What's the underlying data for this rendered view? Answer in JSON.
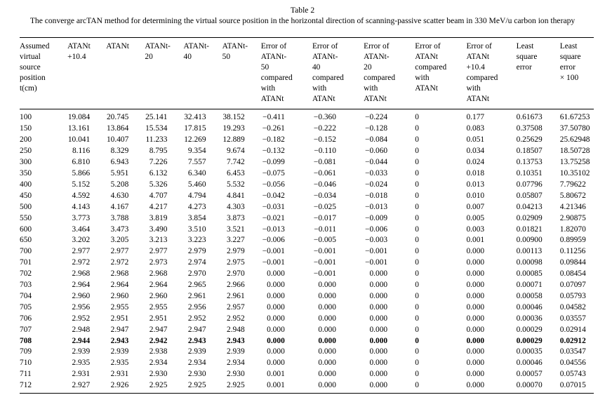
{
  "title": "Table 2",
  "caption": "The converge arcTAN method for determining the virtual source position in the horizontal direction of scanning-passive scatter beam in 330 MeV/u carbon ion therapy",
  "table": {
    "bold_row": "708",
    "columns": [
      {
        "lines": [
          "Assumed",
          "virtual",
          "source",
          "position",
          "t(cm)"
        ]
      },
      {
        "lines": [
          "ATANt",
          "+10.4"
        ]
      },
      {
        "lines": [
          "ATANt"
        ]
      },
      {
        "lines": [
          "ATANt-",
          "20"
        ]
      },
      {
        "lines": [
          "ATANt-",
          "40"
        ]
      },
      {
        "lines": [
          "ATANt-",
          "50"
        ]
      },
      {
        "lines": [
          "Error of",
          "ATANt-",
          "50",
          "compared",
          "with",
          "ATANt"
        ]
      },
      {
        "lines": [
          "Error of",
          "ATANt-",
          "40",
          "compared",
          "with",
          "ATANt"
        ]
      },
      {
        "lines": [
          "Error of",
          "ATANt-",
          "20",
          "compared",
          "with",
          "ATANt"
        ]
      },
      {
        "lines": [
          "Error of",
          "ATANt",
          "compared",
          "with",
          "ATANt"
        ]
      },
      {
        "lines": [
          "Error of",
          "ATANt",
          "+10.4",
          "compared",
          "with",
          "ATANt"
        ]
      },
      {
        "lines": [
          "Least",
          "square",
          "error"
        ]
      },
      {
        "lines": [
          "Least",
          "square",
          "error",
          "× 100"
        ]
      }
    ],
    "rows": [
      [
        "100",
        "19.084",
        "20.745",
        "25.141",
        "32.413",
        "38.152",
        "−0.411",
        "−0.360",
        "−0.224",
        "0",
        "0.177",
        "0.61673",
        "61.67253"
      ],
      [
        "150",
        "13.161",
        "13.864",
        "15.534",
        "17.815",
        "19.293",
        "−0.261",
        "−0.222",
        "−0.128",
        "0",
        "0.083",
        "0.37508",
        "37.50780"
      ],
      [
        "200",
        "10.041",
        "10.407",
        "11.233",
        "12.269",
        "12.889",
        "−0.182",
        "−0.152",
        "−0.084",
        "0",
        "0.051",
        "0.25629",
        "25.62948"
      ],
      [
        "250",
        "8.116",
        "8.329",
        "8.795",
        "9.354",
        "9.674",
        "−0.132",
        "−0.110",
        "−0.060",
        "0",
        "0.034",
        "0.18507",
        "18.50728"
      ],
      [
        "300",
        "6.810",
        "6.943",
        "7.226",
        "7.557",
        "7.742",
        "−0.099",
        "−0.081",
        "−0.044",
        "0",
        "0.024",
        "0.13753",
        "13.75258"
      ],
      [
        "350",
        "5.866",
        "5.951",
        "6.132",
        "6.340",
        "6.453",
        "−0.075",
        "−0.061",
        "−0.033",
        "0",
        "0.018",
        "0.10351",
        "10.35102"
      ],
      [
        "400",
        "5.152",
        "5.208",
        "5.326",
        "5.460",
        "5.532",
        "−0.056",
        "−0.046",
        "−0.024",
        "0",
        "0.013",
        "0.07796",
        "7.79622"
      ],
      [
        "450",
        "4.592",
        "4.630",
        "4.707",
        "4.794",
        "4.841",
        "−0.042",
        "−0.034",
        "−0.018",
        "0",
        "0.010",
        "0.05807",
        "5.80672"
      ],
      [
        "500",
        "4.143",
        "4.167",
        "4.217",
        "4.273",
        "4.303",
        "−0.031",
        "−0.025",
        "−0.013",
        "0",
        "0.007",
        "0.04213",
        "4.21346"
      ],
      [
        "550",
        "3.773",
        "3.788",
        "3.819",
        "3.854",
        "3.873",
        "−0.021",
        "−0.017",
        "−0.009",
        "0",
        "0.005",
        "0.02909",
        "2.90875"
      ],
      [
        "600",
        "3.464",
        "3.473",
        "3.490",
        "3.510",
        "3.521",
        "−0.013",
        "−0.011",
        "−0.006",
        "0",
        "0.003",
        "0.01821",
        "1.82070"
      ],
      [
        "650",
        "3.202",
        "3.205",
        "3.213",
        "3.223",
        "3.227",
        "−0.006",
        "−0.005",
        "−0.003",
        "0",
        "0.001",
        "0.00900",
        "0.89959"
      ],
      [
        "700",
        "2.977",
        "2.977",
        "2.977",
        "2.979",
        "2.979",
        "−0.001",
        "−0.001",
        "−0.001",
        "0",
        "0.000",
        "0.00113",
        "0.11256"
      ],
      [
        "701",
        "2.972",
        "2.972",
        "2.973",
        "2.974",
        "2.975",
        "−0.001",
        "−0.001",
        "−0.001",
        "0",
        "0.000",
        "0.00098",
        "0.09844"
      ],
      [
        "702",
        "2.968",
        "2.968",
        "2.968",
        "2.970",
        "2.970",
        "0.000",
        "−0.001",
        "0.000",
        "0",
        "0.000",
        "0.00085",
        "0.08454"
      ],
      [
        "703",
        "2.964",
        "2.964",
        "2.964",
        "2.965",
        "2.966",
        "0.000",
        "0.000",
        "0.000",
        "0",
        "0.000",
        "0.00071",
        "0.07097"
      ],
      [
        "704",
        "2.960",
        "2.960",
        "2.960",
        "2.961",
        "2.961",
        "0.000",
        "0.000",
        "0.000",
        "0",
        "0.000",
        "0.00058",
        "0.05793"
      ],
      [
        "705",
        "2.956",
        "2.955",
        "2.955",
        "2.956",
        "2.957",
        "0.000",
        "0.000",
        "0.000",
        "0",
        "0.000",
        "0.00046",
        "0.04582"
      ],
      [
        "706",
        "2.952",
        "2.951",
        "2.951",
        "2.952",
        "2.952",
        "0.000",
        "0.000",
        "0.000",
        "0",
        "0.000",
        "0.00036",
        "0.03557"
      ],
      [
        "707",
        "2.948",
        "2.947",
        "2.947",
        "2.947",
        "2.948",
        "0.000",
        "0.000",
        "0.000",
        "0",
        "0.000",
        "0.00029",
        "0.02914"
      ],
      [
        "708",
        "2.944",
        "2.943",
        "2.942",
        "2.943",
        "2.943",
        "0.000",
        "0.000",
        "0.000",
        "0",
        "0.000",
        "0.00029",
        "0.02912"
      ],
      [
        "709",
        "2.939",
        "2.939",
        "2.938",
        "2.939",
        "2.939",
        "0.000",
        "0.000",
        "0.000",
        "0",
        "0.000",
        "0.00035",
        "0.03547"
      ],
      [
        "710",
        "2.935",
        "2.935",
        "2.934",
        "2.934",
        "2.934",
        "0.000",
        "0.000",
        "0.000",
        "0",
        "0.000",
        "0.00046",
        "0.04556"
      ],
      [
        "711",
        "2.931",
        "2.931",
        "2.930",
        "2.930",
        "2.930",
        "0.001",
        "0.000",
        "0.000",
        "0",
        "0.000",
        "0.00057",
        "0.05743"
      ],
      [
        "712",
        "2.927",
        "2.926",
        "2.925",
        "2.925",
        "2.925",
        "0.001",
        "0.000",
        "0.000",
        "0",
        "0.000",
        "0.00070",
        "0.07015"
      ]
    ]
  }
}
